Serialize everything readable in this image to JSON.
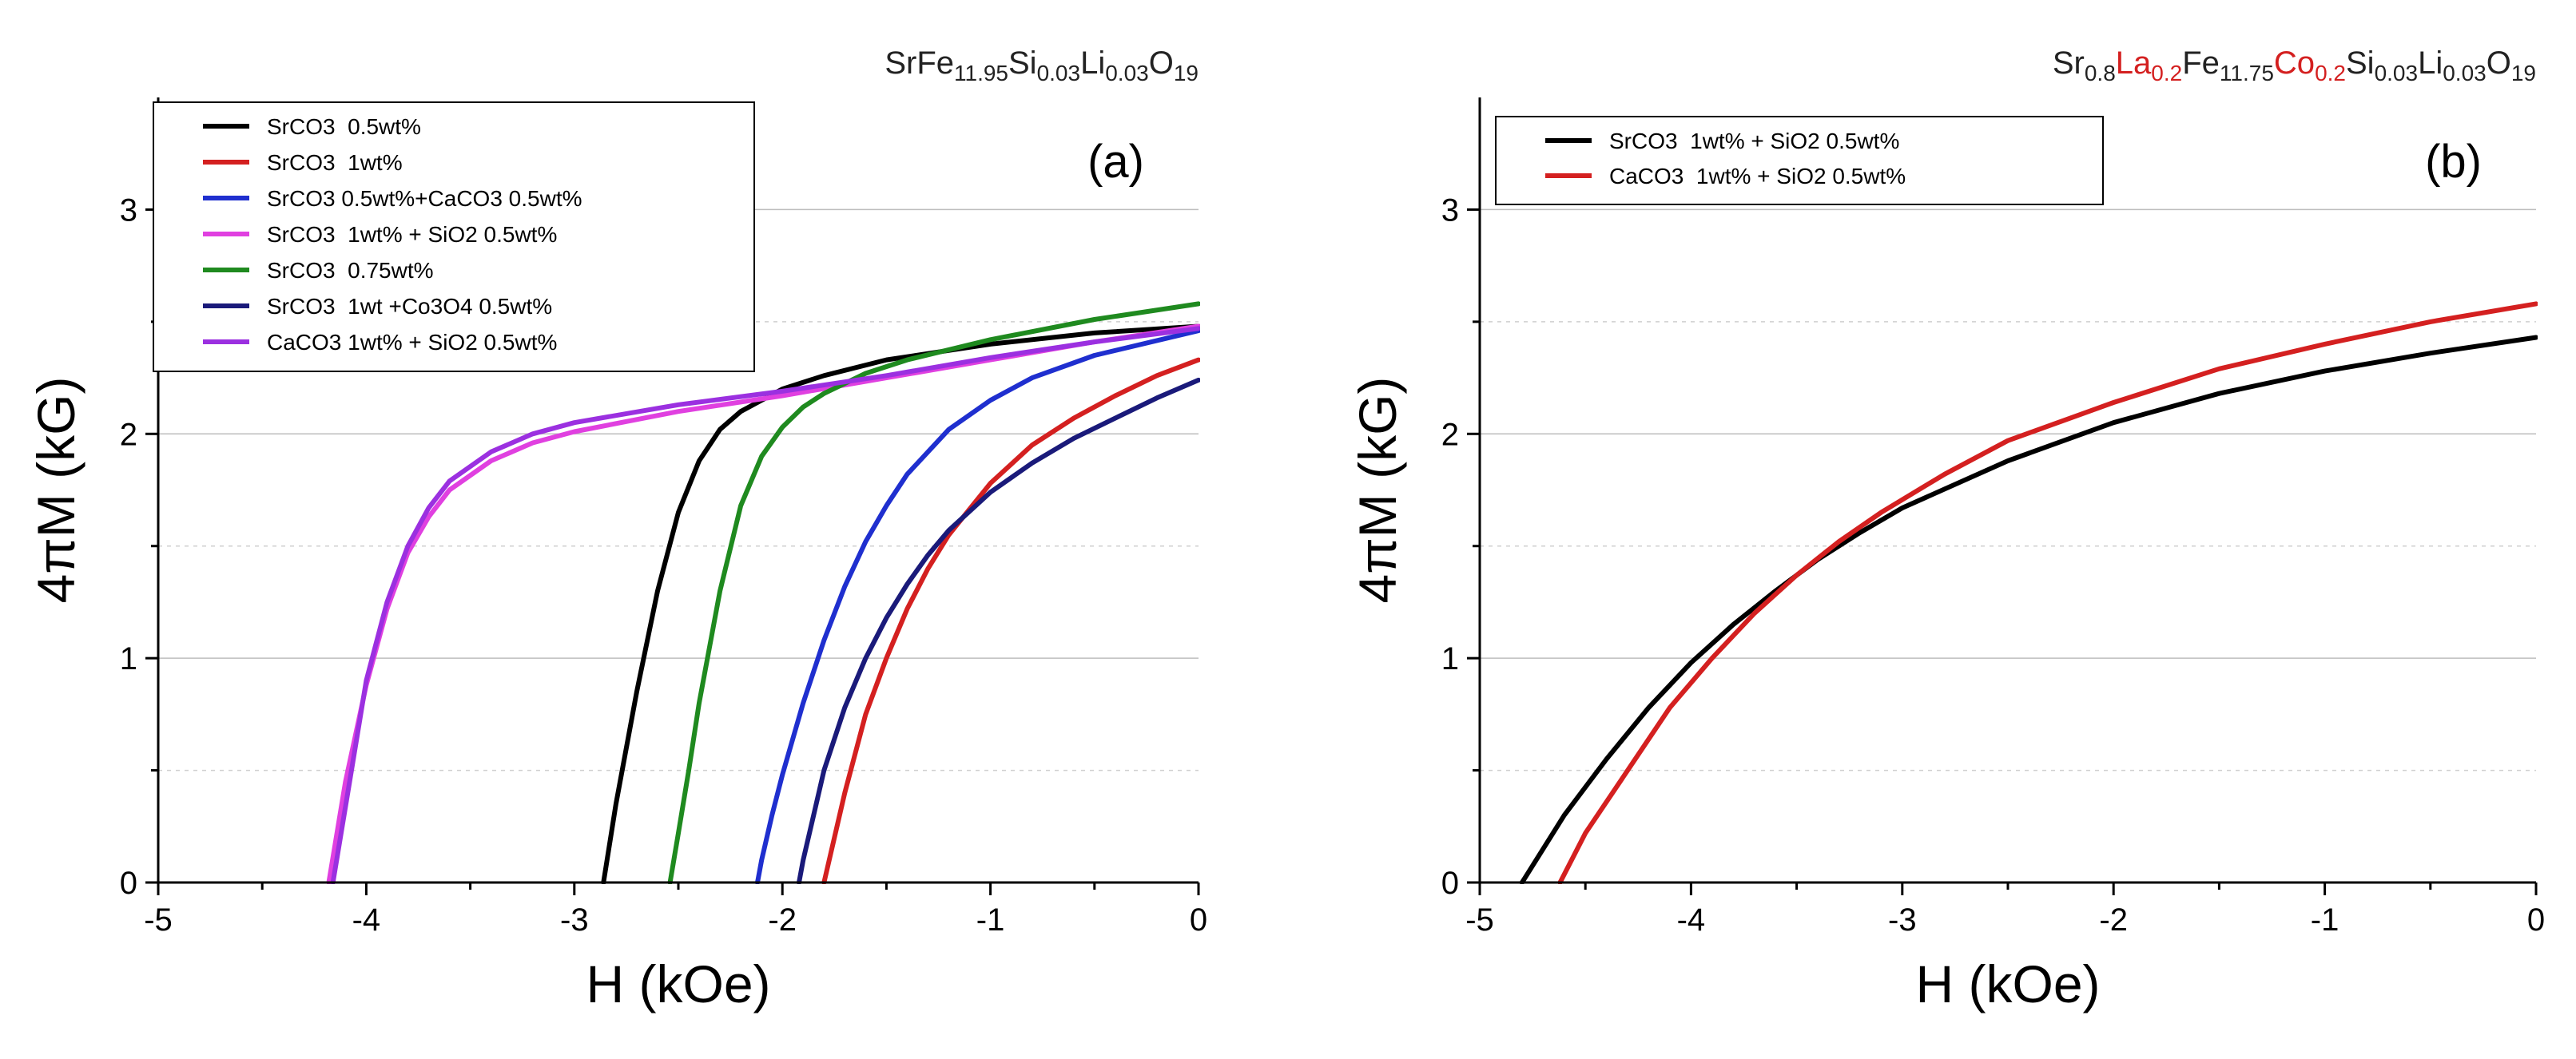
{
  "chart_data": [
    {
      "type": "line",
      "panel_label": "(a)",
      "formula": [
        {
          "text": "SrFe",
          "sub": false,
          "color": "#222222"
        },
        {
          "text": "11.95",
          "sub": true,
          "color": "#222222"
        },
        {
          "text": "Si",
          "sub": false,
          "color": "#222222"
        },
        {
          "text": "0.03",
          "sub": true,
          "color": "#222222"
        },
        {
          "text": "Li",
          "sub": false,
          "color": "#222222"
        },
        {
          "text": "0.03",
          "sub": true,
          "color": "#222222"
        },
        {
          "text": "O",
          "sub": false,
          "color": "#222222"
        },
        {
          "text": "19",
          "sub": true,
          "color": "#222222"
        }
      ],
      "xlabel": "H (kOe)",
      "ylabel": "4πM (kG)",
      "xlim": [
        -5,
        0
      ],
      "ylim": [
        0,
        3.5
      ],
      "xticks": [
        -5,
        -4,
        -3,
        -2,
        -1,
        0
      ],
      "yticks": [
        0,
        1,
        2,
        3
      ],
      "minor_grid_y": [
        0.5,
        1.5,
        2.5
      ],
      "grid": true,
      "legend_position": "top-left",
      "series": [
        {
          "name": "SrCO3  0.5wt%",
          "color": "#000000",
          "x": [
            -2.86,
            -2.8,
            -2.7,
            -2.6,
            -2.5,
            -2.4,
            -2.3,
            -2.2,
            -2.0,
            -1.8,
            -1.5,
            -1.0,
            -0.5,
            0
          ],
          "y": [
            0,
            0.35,
            0.85,
            1.3,
            1.65,
            1.88,
            2.02,
            2.1,
            2.2,
            2.26,
            2.33,
            2.4,
            2.45,
            2.48
          ]
        },
        {
          "name": "SrCO3  1wt%",
          "color": "#d42020",
          "x": [
            -1.8,
            -1.75,
            -1.7,
            -1.6,
            -1.5,
            -1.4,
            -1.3,
            -1.2,
            -1.0,
            -0.8,
            -0.6,
            -0.4,
            -0.2,
            0
          ],
          "y": [
            0,
            0.2,
            0.4,
            0.75,
            1.0,
            1.22,
            1.4,
            1.55,
            1.78,
            1.95,
            2.07,
            2.17,
            2.26,
            2.33
          ]
        },
        {
          "name": "SrCO3 0.5wt%+CaCO3 0.5wt%",
          "color": "#1f2fcf",
          "x": [
            -2.12,
            -2.1,
            -2.05,
            -2.0,
            -1.9,
            -1.8,
            -1.7,
            -1.6,
            -1.5,
            -1.4,
            -1.2,
            -1.0,
            -0.8,
            -0.5,
            0
          ],
          "y": [
            0,
            0.1,
            0.3,
            0.48,
            0.8,
            1.08,
            1.32,
            1.52,
            1.68,
            1.82,
            2.02,
            2.15,
            2.25,
            2.35,
            2.46
          ]
        },
        {
          "name": "SrCO3  1wt% + SiO2 0.5wt%",
          "color": "#e040e0",
          "x": [
            -4.18,
            -4.1,
            -4.0,
            -3.9,
            -3.8,
            -3.7,
            -3.6,
            -3.4,
            -3.2,
            -3.0,
            -2.5,
            -2.0,
            -1.5,
            -1.0,
            -0.5,
            0
          ],
          "y": [
            0,
            0.45,
            0.88,
            1.22,
            1.47,
            1.63,
            1.75,
            1.88,
            1.96,
            2.01,
            2.1,
            2.17,
            2.25,
            2.33,
            2.41,
            2.48
          ]
        },
        {
          "name": "SrCO3  0.75wt%",
          "color": "#1f8a1f",
          "x": [
            -2.54,
            -2.5,
            -2.45,
            -2.4,
            -2.3,
            -2.2,
            -2.1,
            -2.0,
            -1.9,
            -1.8,
            -1.6,
            -1.4,
            -1.0,
            -0.5,
            0
          ],
          "y": [
            0,
            0.22,
            0.5,
            0.8,
            1.3,
            1.68,
            1.9,
            2.03,
            2.12,
            2.18,
            2.27,
            2.33,
            2.42,
            2.51,
            2.58
          ]
        },
        {
          "name": "SrCO3  1wt +Co3O4 0.5wt%",
          "color": "#1a1a7a",
          "x": [
            -1.92,
            -1.9,
            -1.85,
            -1.8,
            -1.7,
            -1.6,
            -1.5,
            -1.4,
            -1.3,
            -1.2,
            -1.0,
            -0.8,
            -0.6,
            -0.4,
            -0.2,
            0
          ],
          "y": [
            0,
            0.1,
            0.3,
            0.5,
            0.78,
            1.0,
            1.18,
            1.33,
            1.46,
            1.57,
            1.74,
            1.87,
            1.98,
            2.07,
            2.16,
            2.24
          ]
        },
        {
          "name": "CaCO3 1wt% + SiO2 0.5wt%",
          "color": "#9b30e0",
          "x": [
            -4.16,
            -4.08,
            -4.0,
            -3.9,
            -3.8,
            -3.7,
            -3.6,
            -3.4,
            -3.2,
            -3.0,
            -2.5,
            -2.0,
            -1.5,
            -1.0,
            -0.5,
            0
          ],
          "y": [
            0,
            0.45,
            0.9,
            1.25,
            1.5,
            1.67,
            1.79,
            1.92,
            2.0,
            2.05,
            2.13,
            2.19,
            2.26,
            2.34,
            2.41,
            2.47
          ]
        }
      ]
    },
    {
      "type": "line",
      "panel_label": "(b)",
      "formula": [
        {
          "text": "Sr",
          "sub": false,
          "color": "#222222"
        },
        {
          "text": "0.8",
          "sub": true,
          "color": "#222222"
        },
        {
          "text": "La",
          "sub": false,
          "color": "#d42020"
        },
        {
          "text": "0.2",
          "sub": true,
          "color": "#d42020"
        },
        {
          "text": "Fe",
          "sub": false,
          "color": "#222222"
        },
        {
          "text": "11.75",
          "sub": true,
          "color": "#222222"
        },
        {
          "text": "Co",
          "sub": false,
          "color": "#d42020"
        },
        {
          "text": "0.2",
          "sub": true,
          "color": "#d42020"
        },
        {
          "text": "Si",
          "sub": false,
          "color": "#222222"
        },
        {
          "text": "0.03",
          "sub": true,
          "color": "#222222"
        },
        {
          "text": "Li",
          "sub": false,
          "color": "#222222"
        },
        {
          "text": "0.03",
          "sub": true,
          "color": "#222222"
        },
        {
          "text": "O",
          "sub": false,
          "color": "#222222"
        },
        {
          "text": "19",
          "sub": true,
          "color": "#222222"
        }
      ],
      "xlabel": "H (kOe)",
      "ylabel": "4πM (kG)",
      "xlim": [
        -5,
        0
      ],
      "ylim": [
        0,
        3.5
      ],
      "xticks": [
        -5,
        -4,
        -3,
        -2,
        -1,
        0
      ],
      "yticks": [
        0,
        1,
        2,
        3
      ],
      "minor_grid_y": [
        0.5,
        1.5,
        2.5
      ],
      "grid": true,
      "legend_position": "top-left",
      "series": [
        {
          "name": "SrCO3  1wt% + SiO2 0.5wt%",
          "color": "#000000",
          "x": [
            -4.8,
            -4.6,
            -4.4,
            -4.2,
            -4.0,
            -3.8,
            -3.6,
            -3.4,
            -3.2,
            -3.0,
            -2.5,
            -2.0,
            -1.5,
            -1.0,
            -0.5,
            0
          ],
          "y": [
            0,
            0.3,
            0.55,
            0.78,
            0.98,
            1.15,
            1.3,
            1.44,
            1.56,
            1.67,
            1.88,
            2.05,
            2.18,
            2.28,
            2.36,
            2.43
          ]
        },
        {
          "name": "CaCO3  1wt% + SiO2 0.5wt%",
          "color": "#d42020",
          "x": [
            -4.62,
            -4.5,
            -4.3,
            -4.1,
            -3.9,
            -3.7,
            -3.5,
            -3.3,
            -3.1,
            -2.8,
            -2.5,
            -2.0,
            -1.5,
            -1.0,
            -0.5,
            0
          ],
          "y": [
            0,
            0.22,
            0.5,
            0.78,
            1.0,
            1.2,
            1.37,
            1.52,
            1.65,
            1.82,
            1.97,
            2.14,
            2.29,
            2.4,
            2.5,
            2.58
          ]
        }
      ]
    }
  ]
}
